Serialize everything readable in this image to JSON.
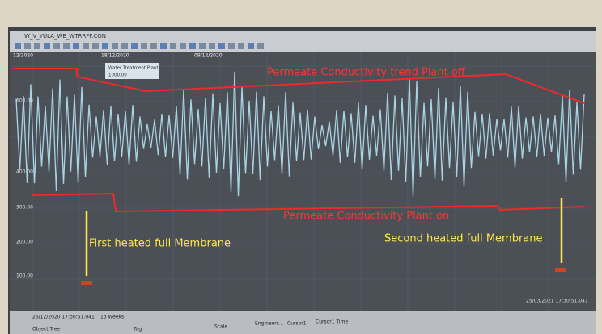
{
  "window": {
    "title": "W_V_YULA_WE_WTRRFF.CON",
    "dates": [
      "12/2020",
      "18/12/2020",
      "09/12/2020"
    ]
  },
  "tooltip": {
    "lines": [
      "Water Treatment Plant",
      "1000.00"
    ]
  },
  "axis": {
    "labels": [
      "600.00",
      "400.00",
      "300.00",
      "200.00",
      "100.00"
    ]
  },
  "annotations": {
    "plant_off": "Permeate Conductivity trend Plant off",
    "plant_on": "Permeate Conductivity Plant on",
    "first": "First heated full Membrane",
    "second": "Second heated full Membrane"
  },
  "footer": {
    "start": "26/12/2020 17:30:51.041",
    "range": "13 Weeks",
    "end": "25/03/2021 17:30:51.041",
    "columns": [
      "Object Tree",
      "Tag",
      "Scale",
      "Engineers...",
      "Cursor1",
      "Cursor1 Time"
    ]
  }
}
